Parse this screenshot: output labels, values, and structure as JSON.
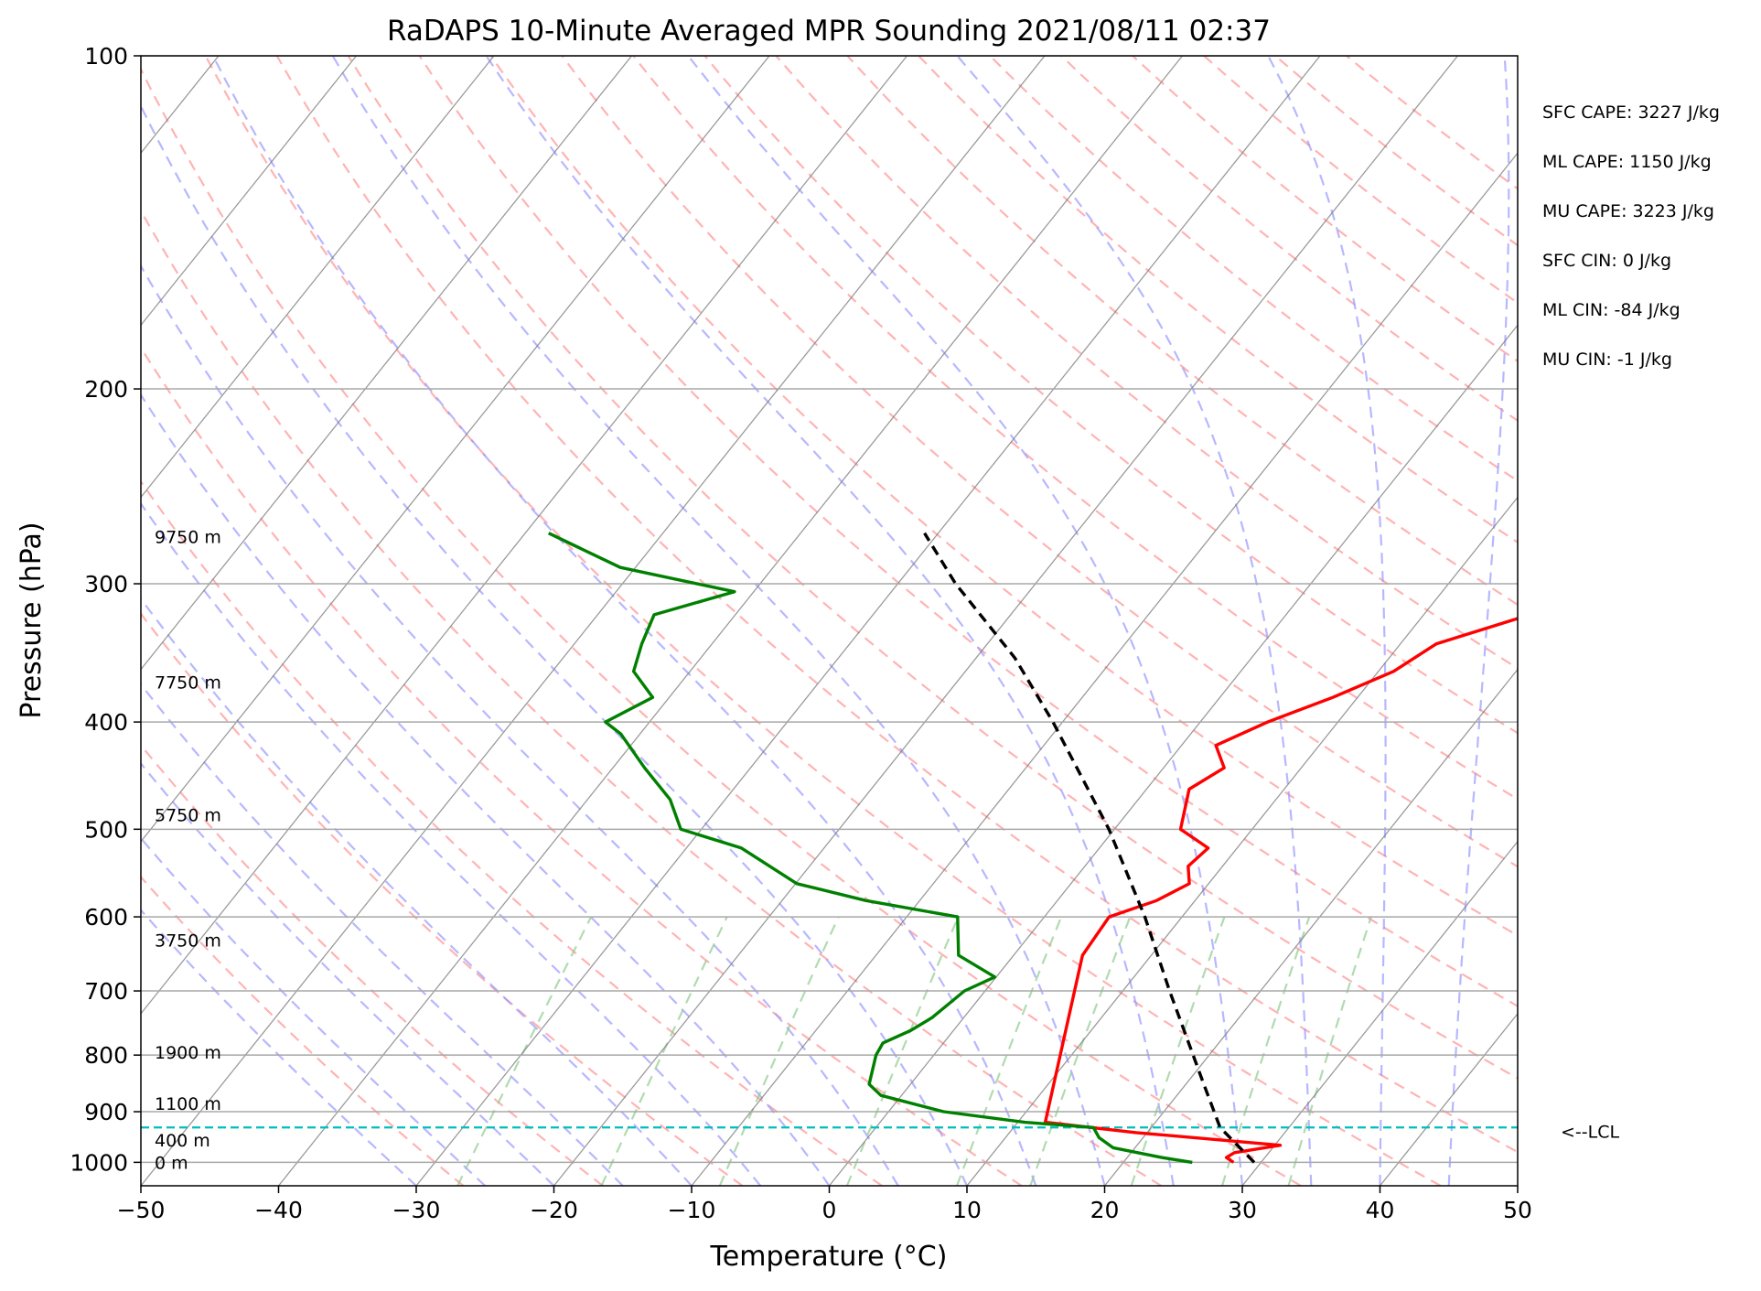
{
  "chart_data": {
    "type": "line",
    "title": "RaDAPS 10-Minute Averaged MPR Sounding 2021/08/11 02:37",
    "xlabel": "Temperature (°C)",
    "ylabel": "Pressure (hPa)",
    "xlim": [
      -50,
      50
    ],
    "ylim": [
      1050,
      100
    ],
    "yscale": "log",
    "skew": true,
    "grid": true,
    "x_ticks": [
      -50,
      -40,
      -30,
      -20,
      -10,
      0,
      10,
      20,
      30,
      40,
      50
    ],
    "x_tick_labels": [
      "−50",
      "−40",
      "−30",
      "−20",
      "−10",
      "0",
      "10",
      "20",
      "30",
      "40",
      "50"
    ],
    "y_ticks": [
      100,
      200,
      300,
      400,
      500,
      600,
      700,
      800,
      900,
      1000
    ],
    "y_tick_labels": [
      "100",
      "200",
      "300",
      "400",
      "500",
      "600",
      "700",
      "800",
      "900",
      "1000"
    ],
    "series": [
      {
        "role": "temperature",
        "color": "#ff0000",
        "points": [
          [
            1000,
            28.0
          ],
          [
            990,
            27.2
          ],
          [
            980,
            27.5
          ],
          [
            965,
            30.4
          ],
          [
            940,
            19.2
          ],
          [
            920,
            12.0
          ],
          [
            650,
            5.0
          ],
          [
            600,
            4.7
          ],
          [
            580,
            7.2
          ],
          [
            560,
            8.6
          ],
          [
            540,
            7.5
          ],
          [
            520,
            7.9
          ],
          [
            500,
            4.8
          ],
          [
            460,
            3.1
          ],
          [
            440,
            4.4
          ],
          [
            420,
            2.5
          ],
          [
            400,
            4.9
          ],
          [
            380,
            8.2
          ],
          [
            360,
            11.1
          ],
          [
            340,
            12.6
          ],
          [
            320,
            17.7
          ],
          [
            300,
            16.2
          ],
          [
            285,
            16.3
          ],
          [
            270,
            15.3
          ]
        ]
      },
      {
        "role": "dewpoint",
        "color": "#008000",
        "points": [
          [
            1000,
            25.0
          ],
          [
            990,
            22.5
          ],
          [
            970,
            18.4
          ],
          [
            950,
            16.8
          ],
          [
            930,
            15.8
          ],
          [
            920,
            10.5
          ],
          [
            900,
            4.0
          ],
          [
            870,
            -1.5
          ],
          [
            850,
            -3.0
          ],
          [
            800,
            -4.2
          ],
          [
            780,
            -4.4
          ],
          [
            760,
            -3.1
          ],
          [
            740,
            -2.3
          ],
          [
            700,
            -1.5
          ],
          [
            680,
            -0.1
          ],
          [
            650,
            -4.0
          ],
          [
            600,
            -6.3
          ],
          [
            580,
            -13.9
          ],
          [
            560,
            -19.9
          ],
          [
            520,
            -26.0
          ],
          [
            500,
            -31.5
          ],
          [
            470,
            -34.0
          ],
          [
            440,
            -37.7
          ],
          [
            410,
            -41.4
          ],
          [
            400,
            -43.2
          ],
          [
            380,
            -41.2
          ],
          [
            360,
            -44.1
          ],
          [
            340,
            -45.1
          ],
          [
            320,
            -45.9
          ],
          [
            305,
            -41.4
          ],
          [
            290,
            -51.1
          ],
          [
            270,
            -58.3
          ]
        ]
      },
      {
        "role": "parcel",
        "color": "#000000",
        "style": "dashed",
        "points": [
          [
            1000,
            29.5
          ],
          [
            930,
            25.0
          ],
          [
            850,
            21.3
          ],
          [
            700,
            13.4
          ],
          [
            600,
            7.3
          ],
          [
            500,
            -0.4
          ],
          [
            400,
            -10.7
          ],
          [
            350,
            -17.2
          ],
          [
            300,
            -25.8
          ],
          [
            270,
            -31.0
          ]
        ]
      }
    ],
    "lcl": {
      "pressure": 930,
      "color": "#00bfbf",
      "label": "<--LCL"
    },
    "height_labels": [
      {
        "pressure": 1000,
        "text": "0 m"
      },
      {
        "pressure": 955,
        "text": "400 m"
      },
      {
        "pressure": 885,
        "text": "1100 m"
      },
      {
        "pressure": 795,
        "text": "1900 m"
      },
      {
        "pressure": 630,
        "text": "3750 m"
      },
      {
        "pressure": 485,
        "text": "5750 m"
      },
      {
        "pressure": 368,
        "text": "7750 m"
      },
      {
        "pressure": 272,
        "text": "9750 m"
      }
    ],
    "annotations": [
      "SFC CAPE: 3227 J/kg",
      "ML CAPE: 1150 J/kg",
      "MU CAPE: 3223 J/kg",
      "SFC CIN: 0 J/kg",
      "ML CIN: -84 J/kg",
      "MU CIN: -1 J/kg"
    ],
    "background_lines": {
      "isotherms": {
        "color": "#808080"
      },
      "dry_adiabats": {
        "color": "#ff9999",
        "style": "dashed"
      },
      "moist_adiabats": {
        "color": "#9999ff",
        "style": "dashed"
      },
      "mixing_ratio": {
        "color": "#8fcc8f",
        "style": "dashed"
      }
    }
  }
}
